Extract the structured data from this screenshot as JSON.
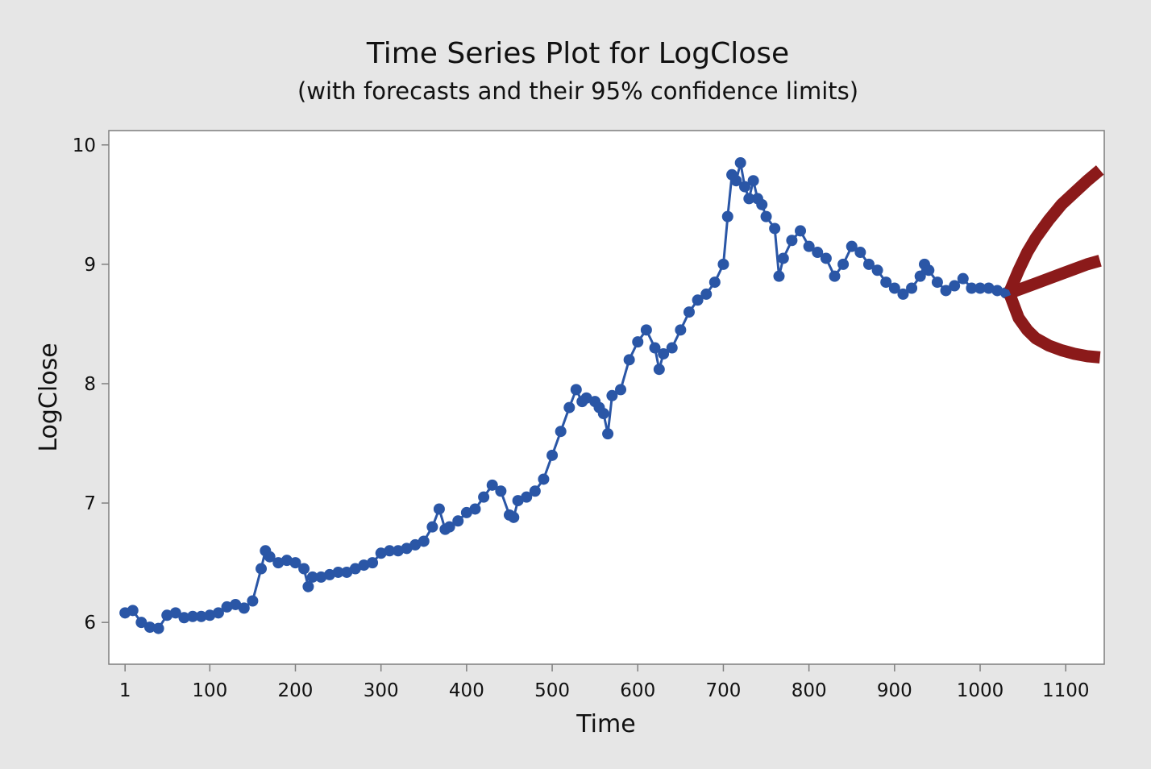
{
  "chart_data": {
    "type": "line",
    "title": "Time Series Plot for LogClose",
    "subtitle": "(with forecasts and their 95% confidence limits)",
    "xlabel": "Time",
    "ylabel": "LogClose",
    "xlim": [
      -18,
      1145
    ],
    "ylim": [
      5.65,
      10.12
    ],
    "x_ticks": [
      1,
      100,
      200,
      300,
      400,
      500,
      600,
      700,
      800,
      900,
      1000,
      1100
    ],
    "x_tick_labels": [
      "1",
      "100",
      "200",
      "300",
      "400",
      "500",
      "600",
      "700",
      "800",
      "900",
      "1000",
      "1100"
    ],
    "y_ticks": [
      6,
      7,
      8,
      9,
      10
    ],
    "y_tick_labels": [
      "6",
      "7",
      "8",
      "9",
      "10"
    ],
    "grid": false,
    "legend": "none",
    "colors": {
      "observed": "#2a56a6",
      "forecast": "#8b1a1a",
      "background": "#e6e6e6",
      "plot_area": "#ffffff"
    },
    "series": [
      {
        "role": "observed",
        "x": [
          1,
          10,
          20,
          30,
          40,
          50,
          60,
          70,
          80,
          90,
          100,
          110,
          120,
          130,
          140,
          150,
          160,
          165,
          170,
          180,
          190,
          200,
          210,
          215,
          220,
          230,
          240,
          250,
          260,
          270,
          280,
          290,
          300,
          310,
          320,
          330,
          340,
          350,
          360,
          368,
          375,
          380,
          390,
          400,
          410,
          420,
          430,
          440,
          450,
          455,
          460,
          470,
          480,
          490,
          500,
          510,
          520,
          528,
          535,
          540,
          550,
          555,
          560,
          565,
          570,
          580,
          590,
          600,
          610,
          620,
          625,
          630,
          640,
          650,
          660,
          670,
          680,
          690,
          700,
          705,
          710,
          715,
          720,
          725,
          730,
          735,
          740,
          745,
          750,
          760,
          765,
          770,
          780,
          790,
          800,
          810,
          820,
          830,
          840,
          850,
          860,
          870,
          880,
          890,
          900,
          910,
          920,
          930,
          935,
          940,
          950,
          960,
          970,
          980,
          990,
          1000,
          1010,
          1020,
          1030,
          1035
        ],
        "values": [
          6.08,
          6.1,
          6.0,
          5.96,
          5.95,
          6.06,
          6.08,
          6.04,
          6.05,
          6.05,
          6.06,
          6.08,
          6.13,
          6.15,
          6.12,
          6.18,
          6.45,
          6.6,
          6.55,
          6.5,
          6.52,
          6.5,
          6.45,
          6.3,
          6.38,
          6.38,
          6.4,
          6.42,
          6.42,
          6.45,
          6.48,
          6.5,
          6.58,
          6.6,
          6.6,
          6.62,
          6.65,
          6.68,
          6.8,
          6.95,
          6.78,
          6.8,
          6.85,
          6.92,
          6.95,
          7.05,
          7.15,
          7.1,
          6.9,
          6.88,
          7.02,
          7.05,
          7.1,
          7.2,
          7.4,
          7.6,
          7.8,
          7.95,
          7.85,
          7.88,
          7.85,
          7.8,
          7.75,
          7.58,
          7.9,
          7.95,
          8.2,
          8.35,
          8.45,
          8.3,
          8.12,
          8.25,
          8.3,
          8.45,
          8.6,
          8.7,
          8.75,
          8.85,
          9.0,
          9.4,
          9.75,
          9.7,
          9.85,
          9.65,
          9.55,
          9.7,
          9.55,
          9.5,
          9.4,
          9.3,
          8.9,
          9.05,
          9.2,
          9.28,
          9.15,
          9.1,
          9.05,
          8.9,
          9.0,
          9.15,
          9.1,
          9.0,
          8.95,
          8.85,
          8.8,
          8.75,
          8.8,
          8.9,
          9.0,
          8.95,
          8.85,
          8.78,
          8.82,
          8.88,
          8.8,
          8.8,
          8.8,
          8.78,
          8.76,
          8.76
        ]
      },
      {
        "role": "forecast",
        "x": [
          1035,
          1050,
          1065,
          1080,
          1095,
          1110,
          1125,
          1140
        ],
        "values": [
          8.76,
          8.8,
          8.84,
          8.88,
          8.92,
          8.96,
          9.0,
          9.03
        ]
      },
      {
        "role": "upper_95_limit",
        "x": [
          1035,
          1045,
          1055,
          1065,
          1080,
          1095,
          1110,
          1125,
          1140
        ],
        "values": [
          8.78,
          8.95,
          9.1,
          9.22,
          9.37,
          9.5,
          9.6,
          9.7,
          9.79
        ]
      },
      {
        "role": "lower_95_limit",
        "x": [
          1035,
          1045,
          1055,
          1065,
          1080,
          1095,
          1110,
          1125,
          1140
        ],
        "values": [
          8.74,
          8.55,
          8.45,
          8.38,
          8.32,
          8.28,
          8.25,
          8.23,
          8.22
        ]
      }
    ]
  }
}
